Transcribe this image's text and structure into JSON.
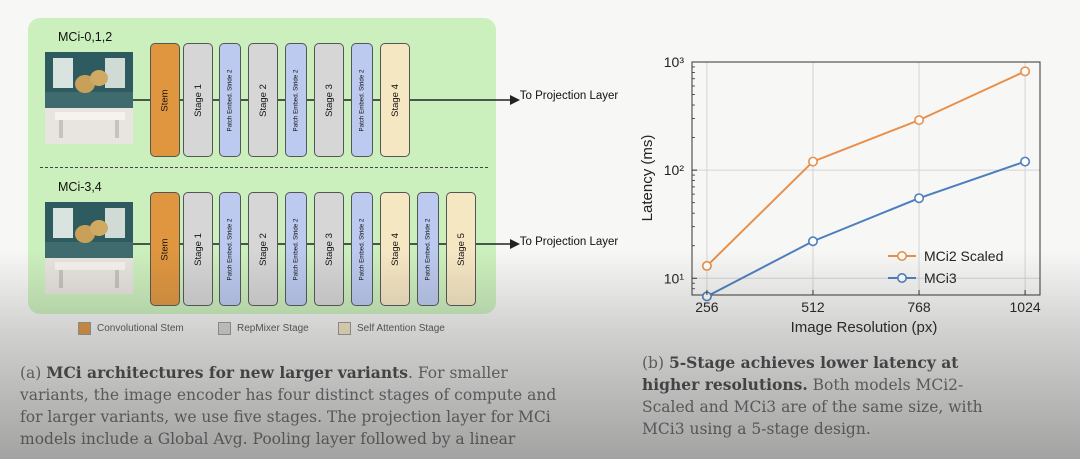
{
  "left_figure": {
    "variant_top": "MCi-0,1,2",
    "variant_bottom": "MCi-3,4",
    "top_blocks": [
      {
        "label": "Stem",
        "kind": "stem"
      },
      {
        "label": "Stage 1",
        "kind": "rep"
      },
      {
        "label": "Patch Embed. Stride 2",
        "kind": "pe"
      },
      {
        "label": "Stage 2",
        "kind": "rep"
      },
      {
        "label": "Patch Embed. Stride 2",
        "kind": "pe"
      },
      {
        "label": "Stage 3",
        "kind": "rep"
      },
      {
        "label": "Patch Embed. Stride 2",
        "kind": "pe"
      },
      {
        "label": "Stage 4",
        "kind": "att"
      }
    ],
    "bottom_blocks": [
      {
        "label": "Stem",
        "kind": "stem"
      },
      {
        "label": "Stage 1",
        "kind": "rep"
      },
      {
        "label": "Patch Embed. Stride 2",
        "kind": "pe"
      },
      {
        "label": "Stage 2",
        "kind": "rep"
      },
      {
        "label": "Patch Embed. Stride 2",
        "kind": "pe"
      },
      {
        "label": "Stage 3",
        "kind": "rep"
      },
      {
        "label": "Patch Embed. Stride 2",
        "kind": "pe"
      },
      {
        "label": "Stage 4",
        "kind": "att"
      },
      {
        "label": "Patch Embed. Stride 2",
        "kind": "pe"
      },
      {
        "label": "Stage 5",
        "kind": "att"
      }
    ],
    "destination": "To Projection Layer",
    "legend": [
      "Convolutional Stem",
      "RepMixer Stage",
      "Self Attention Stage"
    ],
    "colors": {
      "stem": "#e0963e",
      "rep": "#d6d6d6",
      "pe": "#bccaf0",
      "att": "#f6e7c3",
      "panel": "#ccf0bd"
    }
  },
  "caption_a": {
    "tag": "(a)",
    "title": "MCi architectures for new larger variants",
    "lines": [
      ". For smaller",
      "variants, the image encoder has four distinct stages of compute and",
      "for larger variants, we use five stages. The projection layer for MCi",
      "models include a Global Avg. Pooling layer followed by a linear"
    ]
  },
  "caption_b": {
    "tag": "(b)",
    "title_line1": "5-Stage achieves lower latency at",
    "title_line2": "higher resolutions.",
    "lines": [
      "Both models MCi2-",
      "Scaled and MCi3 are of the same size, with",
      "MCi3 using a 5-stage design."
    ]
  },
  "chart_data": {
    "type": "line",
    "xlabel": "Image Resolution (px)",
    "ylabel": "Latency (ms)",
    "x": [
      256,
      512,
      768,
      1024
    ],
    "x_tick_labels": [
      "256",
      "512",
      "768",
      "1024"
    ],
    "y_scale": "log",
    "ylim": [
      7,
      1000
    ],
    "y_ticks": [
      10,
      100,
      1000
    ],
    "y_tick_labels": [
      "10¹",
      "10²",
      "10³"
    ],
    "grid": true,
    "legend_position": "lower-right",
    "series": [
      {
        "name": "MCi2 Scaled",
        "color": "#e8904a",
        "values": [
          13,
          120,
          290,
          820
        ]
      },
      {
        "name": "MCi3",
        "color": "#4d7fbf",
        "values": [
          6.8,
          22,
          55,
          120
        ]
      }
    ]
  }
}
